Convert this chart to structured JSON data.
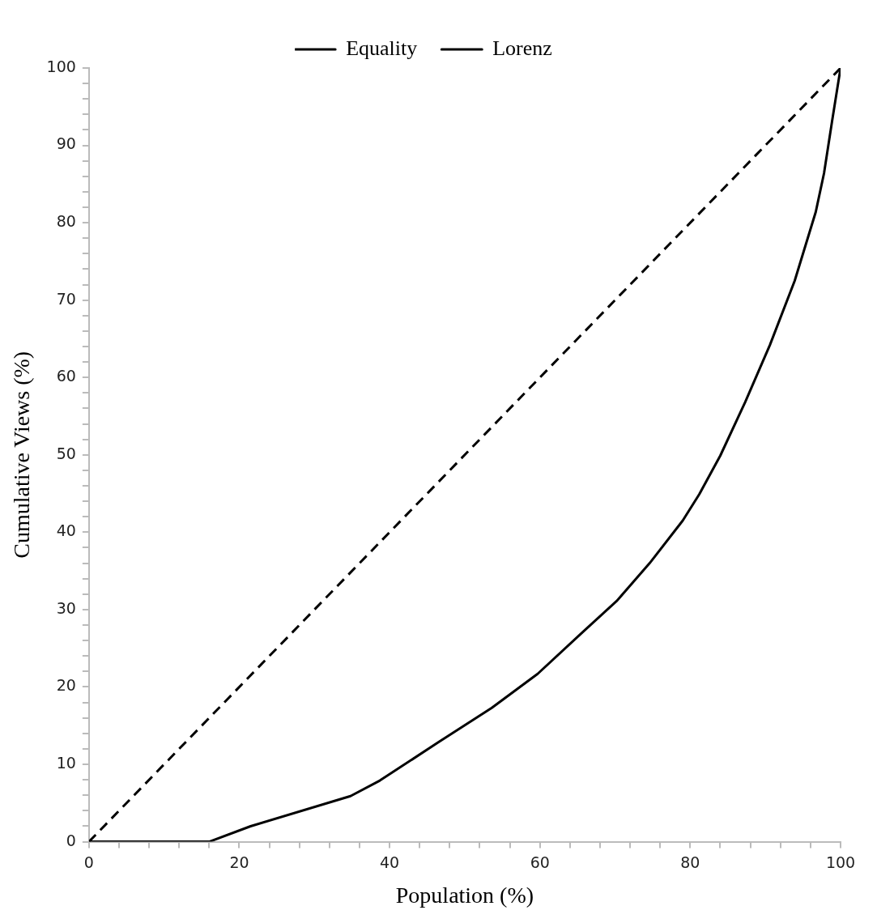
{
  "chart_data": {
    "type": "line",
    "xlabel": "Population (%)",
    "ylabel": "Cumulative Views (%)",
    "xlim": [
      0,
      100
    ],
    "ylim": [
      0,
      100
    ],
    "xticks": [
      0,
      {
        "value": 4,
        "label": null
      },
      {
        "value": 8,
        "label": null
      },
      {
        "value": 12,
        "label": null
      },
      {
        "value": 16,
        "label": null
      },
      20,
      {
        "value": 24,
        "label": null
      },
      {
        "value": 28,
        "label": null
      },
      {
        "value": 32,
        "label": null
      },
      {
        "value": 36,
        "label": null
      },
      40,
      {
        "value": 44,
        "label": null
      },
      {
        "value": 48,
        "label": null
      },
      {
        "value": 52,
        "label": null
      },
      {
        "value": 56,
        "label": null
      },
      60,
      {
        "value": 64,
        "label": null
      },
      {
        "value": 68,
        "label": null
      },
      {
        "value": 72,
        "label": null
      },
      {
        "value": 76,
        "label": null
      },
      80,
      {
        "value": 84,
        "label": null
      },
      {
        "value": 88,
        "label": null
      },
      {
        "value": 92,
        "label": null
      },
      {
        "value": 96,
        "label": null
      },
      100
    ],
    "yticks": [
      0,
      {
        "value": 2,
        "label": null
      },
      {
        "value": 4,
        "label": null
      },
      {
        "value": 6,
        "label": null
      },
      {
        "value": 8,
        "label": null
      },
      10,
      {
        "value": 12,
        "label": null
      },
      {
        "value": 14,
        "label": null
      },
      {
        "value": 16,
        "label": null
      },
      {
        "value": 18,
        "label": null
      },
      20,
      {
        "value": 22,
        "label": null
      },
      {
        "value": 24,
        "label": null
      },
      {
        "value": 26,
        "label": null
      },
      {
        "value": 28,
        "label": null
      },
      30,
      {
        "value": 32,
        "label": null
      },
      {
        "value": 34,
        "label": null
      },
      {
        "value": 36,
        "label": null
      },
      {
        "value": 38,
        "label": null
      },
      40,
      {
        "value": 42,
        "label": null
      },
      {
        "value": 44,
        "label": null
      },
      {
        "value": 46,
        "label": null
      },
      {
        "value": 48,
        "label": null
      },
      50,
      {
        "value": 52,
        "label": null
      },
      {
        "value": 54,
        "label": null
      },
      {
        "value": 56,
        "label": null
      },
      {
        "value": 58,
        "label": null
      },
      60,
      {
        "value": 62,
        "label": null
      },
      {
        "value": 64,
        "label": null
      },
      {
        "value": 66,
        "label": null
      },
      {
        "value": 68,
        "label": null
      },
      70,
      {
        "value": 72,
        "label": null
      },
      {
        "value": 74,
        "label": null
      },
      {
        "value": 76,
        "label": null
      },
      {
        "value": 78,
        "label": null
      },
      80,
      {
        "value": 82,
        "label": null
      },
      {
        "value": 84,
        "label": null
      },
      {
        "value": 86,
        "label": null
      },
      {
        "value": 88,
        "label": null
      },
      90,
      {
        "value": 92,
        "label": null
      },
      {
        "value": 94,
        "label": null
      },
      {
        "value": 96,
        "label": null
      },
      {
        "value": 98,
        "label": null
      },
      100
    ],
    "grid": false,
    "legend": "top",
    "marker": "none",
    "series": [
      {
        "name": "Equality",
        "color": "#000000",
        "line_style": "dashed",
        "x": [
          0,
          100
        ],
        "values": [
          0,
          100
        ]
      },
      {
        "name": "Lorenz",
        "color": "#000000",
        "line_style": "solid",
        "x": [
          0,
          16,
          21.5,
          34.8,
          38.7,
          46.4,
          53.6,
          59.7,
          65.7,
          70.2,
          74.6,
          79,
          81.2,
          84,
          87.3,
          90.6,
          93.9,
          96.7,
          97.8,
          98.9,
          100
        ],
        "values": [
          0,
          0,
          2,
          5.9,
          7.9,
          12.8,
          17.3,
          21.7,
          27.1,
          31.1,
          36,
          41.5,
          44.9,
          49.9,
          56.8,
          64.2,
          72.5,
          81.4,
          86.4,
          93.3,
          100
        ]
      }
    ]
  }
}
